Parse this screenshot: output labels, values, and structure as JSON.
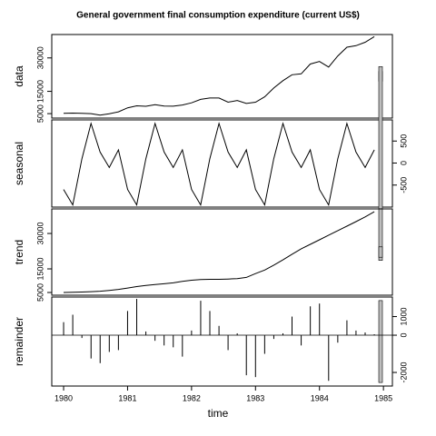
{
  "chart_data": {
    "type": "line",
    "title": "General government final consumption expenditure (current US$)",
    "xlabel": "time",
    "xlim": [
      1979.815,
      1985.14
    ],
    "xticks": [
      1980,
      1981,
      1982,
      1983,
      1984,
      1985
    ],
    "x": [
      1980,
      1980.143,
      1980.286,
      1980.429,
      1980.571,
      1980.714,
      1980.857,
      1981,
      1981.143,
      1981.286,
      1981.429,
      1981.571,
      1981.714,
      1981.857,
      1982,
      1982.143,
      1982.286,
      1982.429,
      1982.571,
      1982.714,
      1982.857,
      1983,
      1983.143,
      1983.286,
      1983.429,
      1983.571,
      1983.714,
      1983.857,
      1984,
      1984.143,
      1984.286,
      1984.429,
      1984.571,
      1984.714,
      1984.857
    ],
    "color": "#000000",
    "panels": [
      {
        "ylabel": "data",
        "style": "line",
        "axis_side": "left",
        "ylim": [
          3000,
          40500
        ],
        "yticks": [
          5000,
          15000,
          30000
        ],
        "values": [
          5100,
          5250,
          5150,
          5000,
          4300,
          4900,
          5800,
          7600,
          8500,
          8300,
          9000,
          8400,
          8350,
          8850,
          9850,
          11400,
          12000,
          12000,
          10150,
          10900,
          9550,
          10150,
          12550,
          16500,
          19800,
          22450,
          22850,
          27250,
          28400,
          25900,
          30900,
          34800,
          35500,
          37050,
          39550
        ]
      },
      {
        "ylabel": "seasonal",
        "style": "line",
        "axis_side": "right",
        "ylim": [
          -1000,
          980
        ],
        "yticks": [
          -500,
          0,
          500
        ],
        "values": [
          -600,
          -950,
          100,
          900,
          250,
          -100,
          300,
          -600,
          -950,
          100,
          900,
          250,
          -100,
          300,
          -600,
          -950,
          100,
          900,
          250,
          -100,
          300,
          -600,
          -950,
          100,
          900,
          250,
          -100,
          300,
          -600,
          -950,
          100,
          900,
          250,
          -100,
          300
        ]
      },
      {
        "ylabel": "trend",
        "style": "line",
        "axis_side": "left",
        "ylim": [
          3850,
          40400
        ],
        "yticks": [
          5000,
          15000,
          30000
        ],
        "values": [
          5000,
          5100,
          5200,
          5350,
          5550,
          5900,
          6300,
          6900,
          7500,
          8000,
          8400,
          8700,
          9100,
          9700,
          10200,
          10500,
          10600,
          10600,
          10700,
          10900,
          11400,
          13000,
          14500,
          16600,
          18800,
          21200,
          23500,
          25400,
          27300,
          29300,
          31200,
          33100,
          35000,
          37000,
          39200
        ]
      },
      {
        "ylabel": "remainder",
        "style": "spike",
        "axis_side": "right",
        "ylim": [
          -2730,
          2050
        ],
        "yticks": [
          -2000,
          0,
          1000
        ],
        "values": [
          700,
          1100,
          -150,
          -1250,
          -1500,
          -900,
          -800,
          1300,
          1950,
          200,
          -300,
          -550,
          -650,
          -1150,
          250,
          1850,
          1300,
          500,
          -800,
          100,
          -2150,
          -2250,
          -1000,
          -200,
          100,
          1000,
          -550,
          1550,
          1700,
          -2450,
          -400,
          800,
          250,
          150,
          50
        ]
      }
    ]
  }
}
